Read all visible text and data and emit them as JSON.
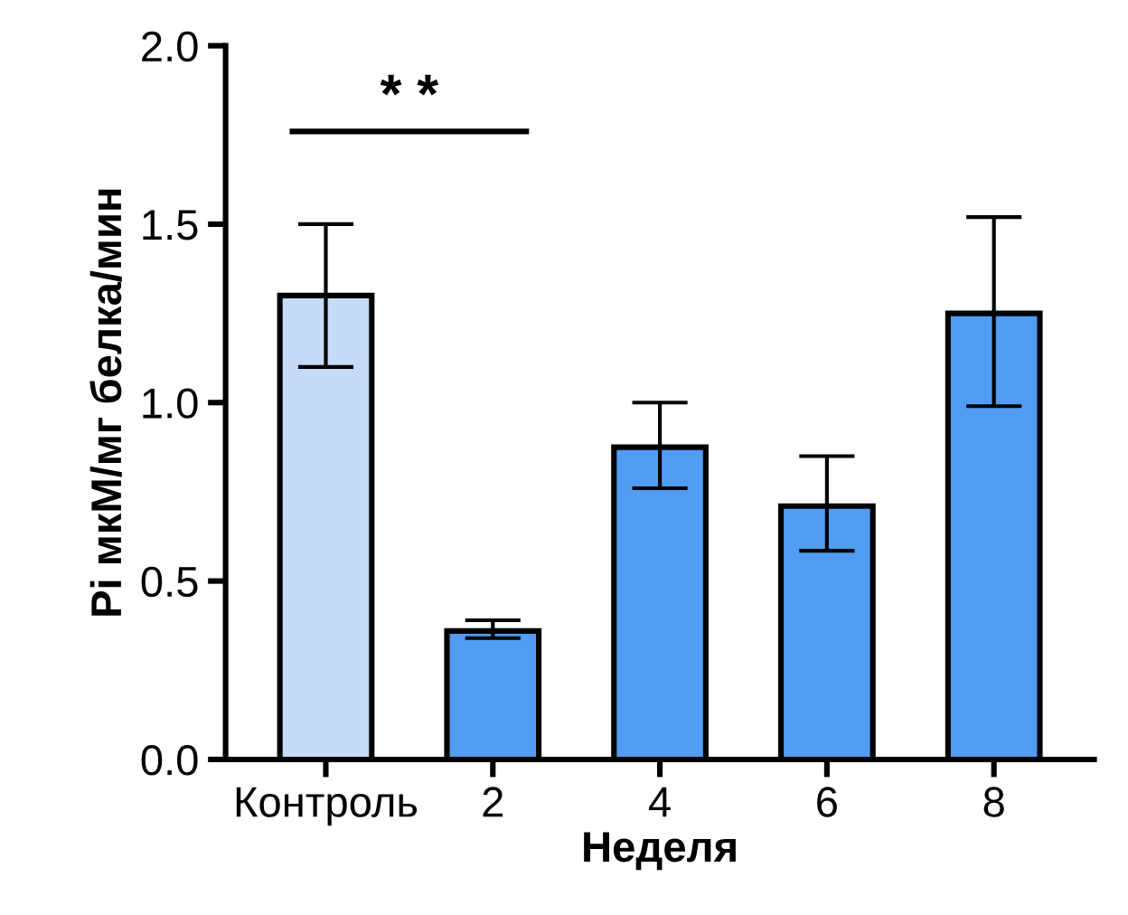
{
  "chart_data": {
    "type": "bar",
    "xlabel": "Неделя",
    "ylabel": "Pi мкМ/мг белка/мин",
    "categories": [
      "Контроль",
      "2",
      "4",
      "6",
      "8"
    ],
    "values": [
      1.3,
      0.36,
      0.875,
      0.71,
      1.25
    ],
    "errors": [
      [
        1.1,
        1.5
      ],
      [
        0.34,
        0.39
      ],
      [
        0.76,
        1.0
      ],
      [
        0.585,
        0.85
      ],
      [
        0.99,
        1.52
      ]
    ],
    "colors": [
      "#c6dbf5",
      "#519cf5",
      "#519cf5",
      "#519cf5",
      "#519cf5"
    ],
    "ylim": [
      0,
      2.0
    ],
    "yticks": [
      {
        "value": 0,
        "label": "0.0"
      },
      {
        "value": 0.5,
        "label": "0.5"
      },
      {
        "value": 1.0,
        "label": "1.0"
      },
      {
        "value": 1.5,
        "label": "1.5"
      },
      {
        "value": 2.0,
        "label": "2.0"
      }
    ],
    "annotations": [
      "* *"
    ],
    "grid": false,
    "legend": false
  }
}
